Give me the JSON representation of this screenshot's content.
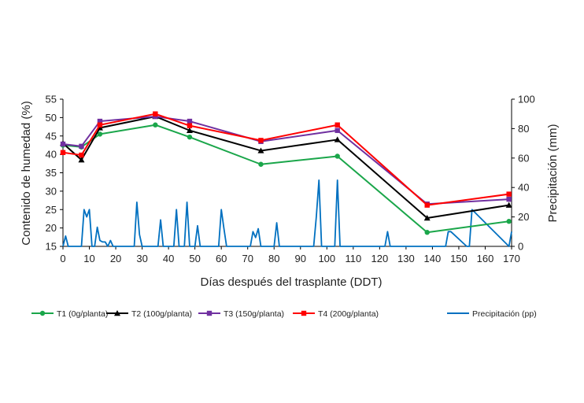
{
  "chart_data": {
    "type": "line",
    "xlabel": "Días después del trasplante (DDT)",
    "ylabel": "Contenido de humedad (%)",
    "y2label": "Precipitación (mm)",
    "xlim": [
      0,
      170
    ],
    "ylim": [
      15,
      55
    ],
    "y2lim": [
      0,
      100
    ],
    "xticks": [
      "0",
      "10",
      "20",
      "30",
      "40",
      "50",
      "60",
      "70",
      "80",
      "90",
      "100",
      "110",
      "120",
      "130",
      "140",
      "150",
      "160",
      "170"
    ],
    "yticks": [
      "15",
      "20",
      "25",
      "30",
      "35",
      "40",
      "45",
      "50",
      "55"
    ],
    "y2ticks": [
      "0",
      "20",
      "40",
      "60",
      "80",
      "100"
    ],
    "grid": false,
    "legend_position": "bottom",
    "series": [
      {
        "name": "T1 (0g/planta)",
        "color": "#1aa64a",
        "marker": "circle",
        "x": [
          0,
          7,
          14,
          35,
          48,
          75,
          104,
          138,
          169
        ],
        "values": [
          42.5,
          42.0,
          45.5,
          48.0,
          44.7,
          37.3,
          39.5,
          18.8,
          21.8
        ]
      },
      {
        "name": "T2 (100g/planta)",
        "color": "#000000",
        "marker": "triangle",
        "x": [
          0,
          7,
          14,
          35,
          48,
          75,
          104,
          138,
          169
        ],
        "values": [
          43.0,
          38.5,
          47.2,
          50.3,
          46.5,
          41.0,
          44.0,
          22.7,
          26.2
        ]
      },
      {
        "name": "T3 (150g/planta)",
        "color": "#7030a0",
        "marker": "square",
        "x": [
          0,
          7,
          14,
          35,
          48,
          75,
          104,
          138,
          169
        ],
        "values": [
          42.8,
          42.2,
          49.0,
          50.3,
          49.0,
          43.5,
          46.5,
          26.5,
          27.8
        ]
      },
      {
        "name": "T4 (200g/planta)",
        "color": "#ff0000",
        "marker": "square",
        "x": [
          0,
          7,
          14,
          35,
          48,
          75,
          104,
          138,
          169
        ],
        "values": [
          40.5,
          39.8,
          48.0,
          51.0,
          47.8,
          43.8,
          48.0,
          26.2,
          29.2
        ]
      },
      {
        "name": "Precipitación (pp)",
        "color": "#0070c0",
        "axis": "right",
        "marker": "none",
        "x": [
          0,
          1,
          2,
          3,
          6,
          7,
          8,
          9,
          10,
          11,
          12,
          13,
          14,
          15,
          16,
          17,
          18,
          19,
          27,
          28,
          29,
          30,
          36,
          37,
          38,
          42,
          43,
          44,
          46,
          47,
          48,
          50,
          51,
          52,
          59,
          60,
          61,
          62,
          71,
          72,
          73,
          74,
          75,
          76,
          80,
          81,
          82,
          95,
          96,
          97,
          98,
          103,
          104,
          105,
          122,
          123,
          124,
          145,
          146,
          147,
          153,
          154,
          155,
          169,
          170
        ],
        "values": [
          0,
          7,
          0,
          0,
          0,
          0,
          25,
          20,
          25,
          0,
          0,
          13,
          4,
          3,
          3,
          0,
          4,
          0,
          0,
          30,
          8,
          0,
          0,
          18,
          0,
          0,
          25,
          0,
          0,
          30,
          0,
          0,
          14,
          0,
          0,
          25,
          12,
          0,
          0,
          10,
          6,
          12,
          0,
          0,
          0,
          16,
          0,
          0,
          20,
          45,
          0,
          0,
          45,
          0,
          0,
          10,
          0,
          0,
          10,
          10,
          0,
          0,
          25,
          0,
          10
        ]
      }
    ]
  }
}
